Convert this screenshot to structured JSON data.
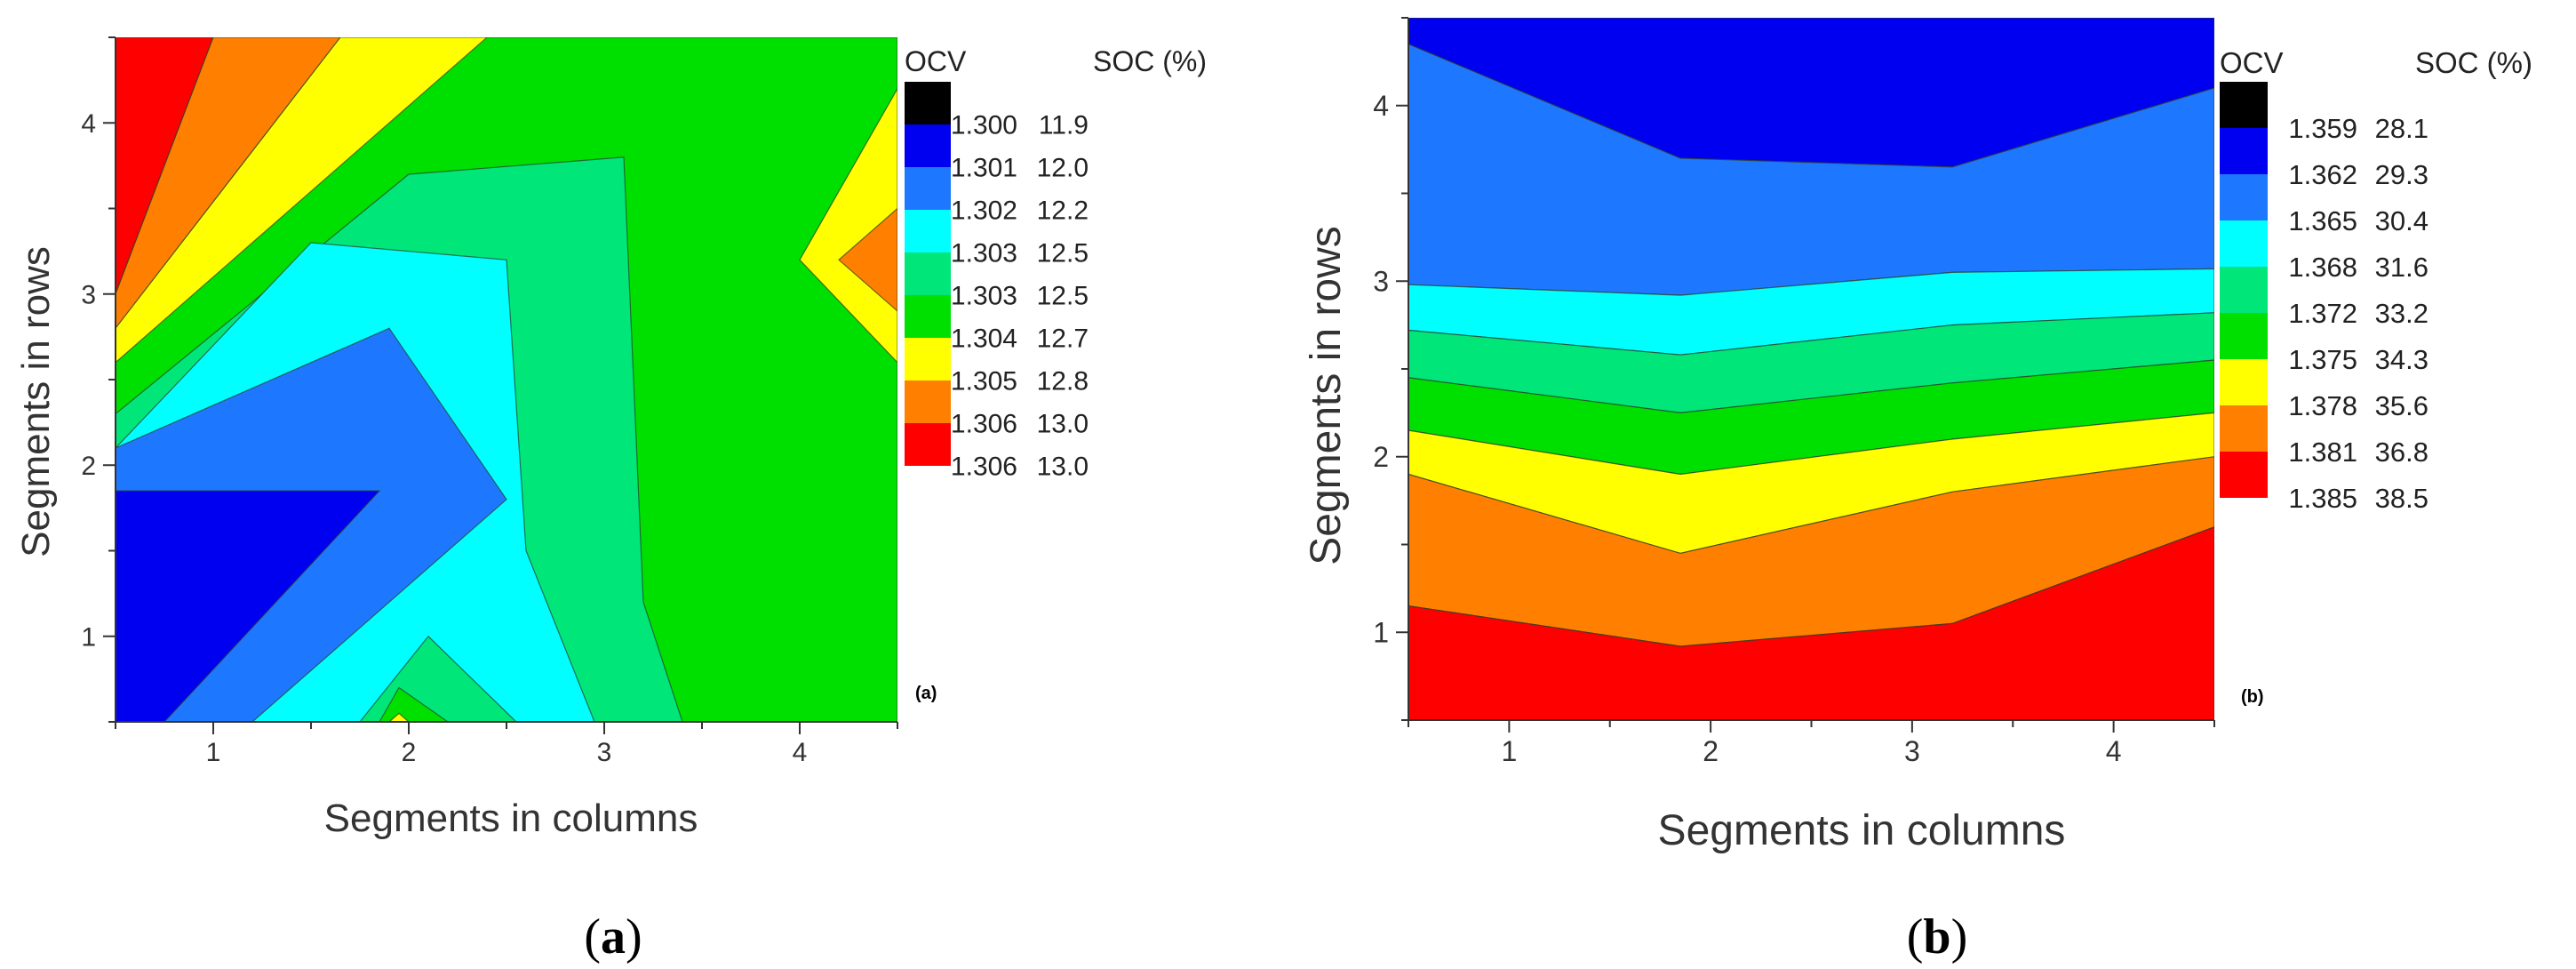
{
  "chart_data": [
    {
      "type": "heatmap",
      "subtype": "filled-contour",
      "panel_label": "(a)",
      "caption_letter": "a",
      "xlabel": "Segments in columns",
      "ylabel": "Segments in rows",
      "xlim": [
        0.5,
        4.5
      ],
      "ylim": [
        0.5,
        4.5
      ],
      "xticks": [
        "1",
        "2",
        "3",
        "4"
      ],
      "yticks": [
        "1",
        "2",
        "3",
        "4"
      ],
      "grid": false,
      "legend_position": "right",
      "legend_header_ocv": "OCV",
      "legend_header_soc": "SOC (%)",
      "levels": [
        {
          "ocv": "1.300",
          "soc": "11.9",
          "color": "#000000"
        },
        {
          "ocv": "1.301",
          "soc": "12.0",
          "color": "#0000f0"
        },
        {
          "ocv": "1.302",
          "soc": "12.2",
          "color": "#1e78ff"
        },
        {
          "ocv": "1.303",
          "soc": "12.5",
          "color": "#00ffff"
        },
        {
          "ocv": "1.303",
          "soc": "12.5",
          "color": "#00e678"
        },
        {
          "ocv": "1.304",
          "soc": "12.7",
          "color": "#00e000"
        },
        {
          "ocv": "1.305",
          "soc": "12.8",
          "color": "#ffff00"
        },
        {
          "ocv": "1.306",
          "soc": "13.0",
          "color": "#ff8000"
        },
        {
          "ocv": "1.306",
          "soc": "13.0",
          "color": "#ff0000"
        }
      ],
      "regions": [
        {
          "level": 5,
          "points": [
            [
              0.5,
              0.5
            ],
            [
              4.5,
              0.5
            ],
            [
              4.5,
              4.5
            ],
            [
              0.5,
              4.5
            ]
          ]
        },
        {
          "level": 8,
          "points": [
            [
              0.5,
              4.5
            ],
            [
              1.0,
              4.5
            ],
            [
              0.5,
              3.0
            ]
          ]
        },
        {
          "level": 7,
          "points": [
            [
              1.0,
              4.5
            ],
            [
              1.65,
              4.5
            ],
            [
              0.5,
              2.8
            ],
            [
              0.5,
              3.0
            ]
          ]
        },
        {
          "level": 6,
          "points": [
            [
              1.65,
              4.5
            ],
            [
              2.4,
              4.5
            ],
            [
              1.2,
              3.3
            ],
            [
              0.5,
              2.6
            ],
            [
              0.5,
              2.8
            ]
          ]
        },
        {
          "level": 4,
          "points": [
            [
              0.5,
              0.5
            ],
            [
              3.4,
              0.5
            ],
            [
              3.2,
              1.2
            ],
            [
              3.1,
              3.8
            ],
            [
              2.0,
              3.7
            ],
            [
              0.5,
              2.3
            ]
          ]
        },
        {
          "level": 3,
          "points": [
            [
              0.5,
              0.5
            ],
            [
              2.95,
              0.5
            ],
            [
              2.6,
              1.5
            ],
            [
              2.5,
              3.2
            ],
            [
              1.5,
              3.3
            ],
            [
              0.5,
              2.1
            ]
          ]
        },
        {
          "level": 2,
          "points": [
            [
              0.5,
              0.5
            ],
            [
              1.2,
              0.5
            ],
            [
              2.5,
              1.8
            ],
            [
              1.9,
              2.8
            ],
            [
              0.5,
              2.1
            ]
          ]
        },
        {
          "level": 1,
          "points": [
            [
              0.5,
              0.5
            ],
            [
              0.75,
              0.5
            ],
            [
              1.85,
              1.85
            ],
            [
              0.5,
              1.85
            ]
          ]
        },
        {
          "level": 4,
          "points": [
            [
              1.75,
              0.5
            ],
            [
              2.1,
              1.0
            ],
            [
              2.55,
              0.5
            ]
          ]
        },
        {
          "level": 5,
          "points": [
            [
              1.85,
              0.5
            ],
            [
              1.95,
              0.7
            ],
            [
              2.2,
              0.5
            ]
          ]
        },
        {
          "level": 6,
          "points": [
            [
              1.9,
              0.5
            ],
            [
              1.95,
              0.55
            ],
            [
              2.0,
              0.5
            ]
          ]
        },
        {
          "level": 6,
          "points": [
            [
              4.5,
              4.2
            ],
            [
              4.0,
              3.2
            ],
            [
              4.5,
              2.6
            ]
          ]
        },
        {
          "level": 7,
          "points": [
            [
              4.5,
              3.5
            ],
            [
              4.2,
              3.2
            ],
            [
              4.5,
              2.9
            ]
          ]
        }
      ]
    },
    {
      "type": "heatmap",
      "subtype": "filled-contour",
      "panel_label": "(b)",
      "caption_letter": "b",
      "xlabel": "Segments in columns",
      "ylabel": "Segments in rows",
      "xlim": [
        0.5,
        4.5
      ],
      "ylim": [
        0.5,
        4.5
      ],
      "xticks": [
        "1",
        "2",
        "3",
        "4"
      ],
      "yticks": [
        "1",
        "2",
        "3",
        "4"
      ],
      "grid": false,
      "legend_position": "right",
      "legend_header_ocv": "OCV",
      "legend_header_soc": "SOC (%)",
      "levels": [
        {
          "ocv": "1.359",
          "soc": "28.1",
          "color": "#000000"
        },
        {
          "ocv": "1.362",
          "soc": "29.3",
          "color": "#0000f0"
        },
        {
          "ocv": "1.365",
          "soc": "30.4",
          "color": "#1e78ff"
        },
        {
          "ocv": "1.368",
          "soc": "31.6",
          "color": "#00ffff"
        },
        {
          "ocv": "1.372",
          "soc": "33.2",
          "color": "#00e678"
        },
        {
          "ocv": "1.375",
          "soc": "34.3",
          "color": "#00e000"
        },
        {
          "ocv": "1.378",
          "soc": "35.6",
          "color": "#ffff00"
        },
        {
          "ocv": "1.381",
          "soc": "36.8",
          "color": "#ff8000"
        },
        {
          "ocv": "1.385",
          "soc": "38.5",
          "color": "#ff0000"
        }
      ],
      "boundaries_x": [
        0.5,
        1.85,
        3.2,
        4.5
      ],
      "boundaries": [
        [
          4.35,
          3.7,
          3.65,
          4.1
        ],
        [
          2.98,
          2.92,
          3.05,
          3.07
        ],
        [
          2.72,
          2.58,
          2.75,
          2.82
        ],
        [
          2.45,
          2.25,
          2.42,
          2.55
        ],
        [
          2.15,
          1.9,
          2.1,
          2.25
        ],
        [
          1.9,
          1.45,
          1.8,
          2.0
        ],
        [
          1.15,
          0.92,
          1.05,
          1.6
        ]
      ],
      "band_levels": [
        1,
        2,
        3,
        4,
        5,
        6,
        7,
        8
      ]
    }
  ]
}
